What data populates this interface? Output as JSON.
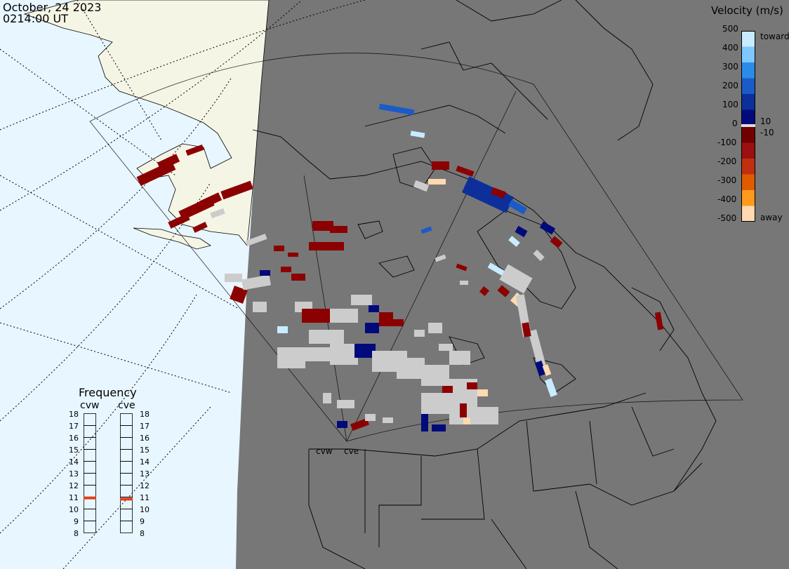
{
  "header": {
    "date": "October, 24 2023",
    "time": "0214:00 UT"
  },
  "colorbar": {
    "title": "Velocity (m/s)",
    "ticks": [
      "500",
      "400",
      "300",
      "200",
      "100",
      "10",
      "0",
      "-10",
      "-100",
      "-200",
      "-300",
      "-400",
      "-500"
    ],
    "toward_label": "toward",
    "away_label": "away",
    "colors": {
      "toward": [
        "#c8ecff",
        "#7cc8ff",
        "#2a8ce6",
        "#1a5bc9",
        "#0c2f9a",
        "#000a7a"
      ],
      "away": [
        "#700000",
        "#9b1010",
        "#c03010",
        "#e05a00",
        "#ff9a1a",
        "#ffd9b0"
      ]
    }
  },
  "map_colors": {
    "ocean": "#e8f6ff",
    "land_alaska": "#f5f5e6",
    "night_land": "#777777",
    "no_velocity": "#cccccc",
    "away_dark": "#8b0000",
    "toward_dark": "#000a7a"
  },
  "frequency": {
    "title": "Frequency",
    "radars": [
      "cvw",
      "cve"
    ],
    "scale": [
      "18",
      "17",
      "16",
      "15",
      "14",
      "13",
      "12",
      "11",
      "10",
      "9",
      "8"
    ],
    "cvw_freq_mhz": 10.9,
    "cve_freq_mhz": 10.8,
    "indicator_color": "#e0401a"
  },
  "sites": {
    "cvw": "cvw",
    "cve": "cve"
  }
}
